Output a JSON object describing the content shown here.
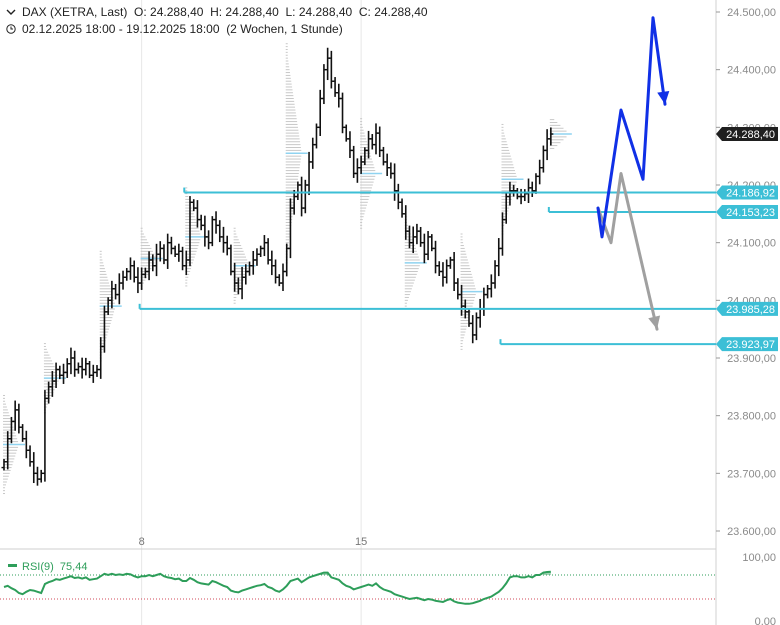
{
  "header": {
    "instrument": "DAX (XETRA, Last)",
    "ohlc": "O: 24.288,40  H: 24.288,40  L: 24.288,40  C: 24.288,40",
    "period": "02.12.2025 18:00 - 19.12.2025 18:00",
    "interval": "(2 Wochen, 1 Stunde)",
    "chevron_icon": "chevron-down-icon",
    "clock_icon": "clock-icon"
  },
  "chart_data": {
    "type": "bar",
    "subtype": "ohlc-hourly",
    "y_ticks": [
      "24.500,00",
      "24.400,00",
      "24.300,00",
      "24.200,00",
      "24.100,00",
      "24.000,00",
      "23.900,00",
      "23.800,00",
      "23.700,00",
      "23.600,00"
    ],
    "y_tick_values": [
      24500,
      24400,
      24300,
      24200,
      24100,
      24000,
      23900,
      23800,
      23700,
      23600
    ],
    "ylim": [
      23550,
      24520
    ],
    "x_ticks": [
      {
        "label": "8",
        "bar": 37
      },
      {
        "label": "15",
        "bar": 96
      }
    ],
    "last_price": {
      "label": "24.288,40",
      "value": 24288.4
    },
    "levels": [
      {
        "label": "24.186,92",
        "value": 24186.92,
        "from_bar": 49
      },
      {
        "label": "24.153,23",
        "value": 24153.23,
        "from_bar": 147
      },
      {
        "label": "23.985,28",
        "value": 23985.28,
        "from_bar": 37
      },
      {
        "label": "23.923,97",
        "value": 23923.97,
        "from_bar": 134
      }
    ],
    "close": [
      23720,
      23760,
      23790,
      23810,
      23780,
      23760,
      23740,
      23720,
      23700,
      23690,
      23700,
      23830,
      23850,
      23860,
      23880,
      23870,
      23875,
      23890,
      23900,
      23880,
      23885,
      23880,
      23890,
      23870,
      23875,
      23880,
      23920,
      23980,
      24000,
      24020,
      24010,
      24030,
      24040,
      24050,
      24060,
      24040,
      24030,
      24045,
      24050,
      24070,
      24060,
      24080,
      24090,
      24070,
      24100,
      24090,
      24080,
      24085,
      24060,
      24070,
      24170,
      24160,
      24140,
      24130,
      24110,
      24100,
      24140,
      24130,
      24110,
      24100,
      24090,
      24050,
      24030,
      24020,
      24040,
      24050,
      24060,
      24070,
      24080,
      24090,
      24100,
      24070,
      24060,
      24040,
      24030,
      24050,
      24090,
      24160,
      24180,
      24200,
      24160,
      24200,
      24240,
      24270,
      24300,
      24350,
      24400,
      24420,
      24380,
      24360,
      24350,
      24300,
      24280,
      24260,
      24220,
      24230,
      24240,
      24260,
      24280,
      24270,
      24290,
      24260,
      24240,
      24230,
      24220,
      24190,
      24170,
      24150,
      24120,
      24100,
      24110,
      24120,
      24100,
      24080,
      24110,
      24090,
      24060,
      24050,
      24040,
      24060,
      24070,
      24030,
      24010,
      23990,
      23980,
      23960,
      23940,
      23970,
      23985,
      24010,
      24020,
      24030,
      24060,
      24090,
      24140,
      24180,
      24190,
      24190,
      24180,
      24180,
      24185,
      24195,
      24190,
      24215,
      24230,
      24260,
      24280,
      24288.4
    ],
    "rsi": {
      "label": "RSI(9)",
      "value": "75,44",
      "current": 75.44,
      "ticks": [
        "100,00",
        "0,00"
      ],
      "overbought": 70,
      "oversold": 30,
      "values": [
        50,
        52,
        48,
        45,
        40,
        38,
        42,
        45,
        44,
        42,
        40,
        55,
        58,
        60,
        63,
        62,
        64,
        66,
        68,
        65,
        66,
        64,
        66,
        62,
        63,
        64,
        68,
        72,
        70,
        72,
        70,
        71,
        70,
        72,
        71,
        68,
        66,
        68,
        68,
        70,
        68,
        70,
        72,
        68,
        66,
        65,
        63,
        64,
        60,
        60,
        65,
        62,
        58,
        56,
        55,
        54,
        60,
        58,
        55,
        52,
        50,
        44,
        42,
        41,
        44,
        46,
        48,
        50,
        52,
        53,
        55,
        50,
        48,
        44,
        42,
        46,
        52,
        60,
        62,
        64,
        58,
        62,
        66,
        68,
        70,
        72,
        74,
        74,
        66,
        64,
        62,
        56,
        52,
        50,
        46,
        48,
        50,
        52,
        54,
        52,
        56,
        50,
        46,
        44,
        42,
        38,
        36,
        34,
        32,
        30,
        31,
        32,
        30,
        28,
        30,
        29,
        27,
        26,
        25,
        28,
        30,
        26,
        24,
        23,
        22,
        22,
        23,
        25,
        27,
        30,
        32,
        34,
        38,
        42,
        48,
        56,
        66,
        68,
        68,
        66,
        66,
        68,
        66,
        70,
        70,
        74,
        75,
        75.44
      ]
    },
    "projection": {
      "bullish_path": [
        24160,
        24110,
        24330,
        24210,
        24490,
        24340
      ],
      "bearish_path": [
        24160,
        24100,
        24220,
        23950
      ]
    },
    "colors": {
      "level": "#3cbfd6",
      "bullish_arrow": "#1030e6",
      "bearish_arrow": "#a0a0a0",
      "rsi": "#2e9e5a",
      "label_bg": "#1f1f1f"
    }
  }
}
